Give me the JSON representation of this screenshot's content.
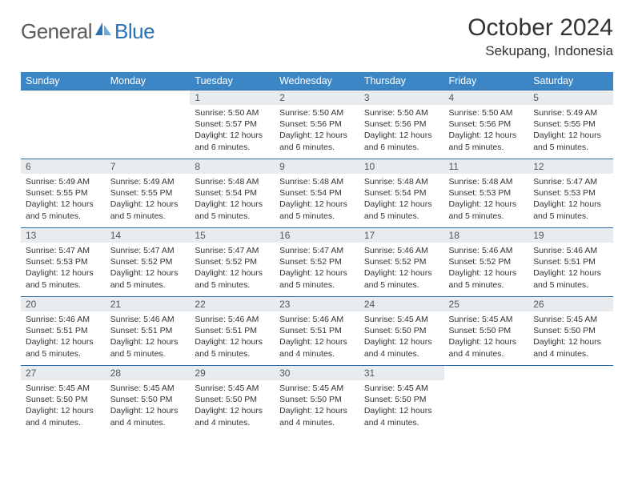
{
  "brand": {
    "general": "General",
    "blue": "Blue"
  },
  "title": "October 2024",
  "location": "Sekupang, Indonesia",
  "style": {
    "header_bg": "#3d86c6",
    "header_fg": "#ffffff",
    "daynum_bg": "#e9ecef",
    "border_color": "#2a6ca8",
    "body_text": "#333333",
    "logo_gray": "#5a5a5a",
    "logo_blue": "#2a72b5",
    "page_bg": "#ffffff",
    "month_fontsize": 30,
    "location_fontsize": 17,
    "header_fontsize": 12.5,
    "body_fontsize": 10.5
  },
  "day_headers": [
    "Sunday",
    "Monday",
    "Tuesday",
    "Wednesday",
    "Thursday",
    "Friday",
    "Saturday"
  ],
  "weeks": [
    [
      null,
      null,
      {
        "n": "1",
        "sr": "5:50 AM",
        "ss": "5:57 PM",
        "dl": "12 hours and 6 minutes."
      },
      {
        "n": "2",
        "sr": "5:50 AM",
        "ss": "5:56 PM",
        "dl": "12 hours and 6 minutes."
      },
      {
        "n": "3",
        "sr": "5:50 AM",
        "ss": "5:56 PM",
        "dl": "12 hours and 6 minutes."
      },
      {
        "n": "4",
        "sr": "5:50 AM",
        "ss": "5:56 PM",
        "dl": "12 hours and 5 minutes."
      },
      {
        "n": "5",
        "sr": "5:49 AM",
        "ss": "5:55 PM",
        "dl": "12 hours and 5 minutes."
      }
    ],
    [
      {
        "n": "6",
        "sr": "5:49 AM",
        "ss": "5:55 PM",
        "dl": "12 hours and 5 minutes."
      },
      {
        "n": "7",
        "sr": "5:49 AM",
        "ss": "5:55 PM",
        "dl": "12 hours and 5 minutes."
      },
      {
        "n": "8",
        "sr": "5:48 AM",
        "ss": "5:54 PM",
        "dl": "12 hours and 5 minutes."
      },
      {
        "n": "9",
        "sr": "5:48 AM",
        "ss": "5:54 PM",
        "dl": "12 hours and 5 minutes."
      },
      {
        "n": "10",
        "sr": "5:48 AM",
        "ss": "5:54 PM",
        "dl": "12 hours and 5 minutes."
      },
      {
        "n": "11",
        "sr": "5:48 AM",
        "ss": "5:53 PM",
        "dl": "12 hours and 5 minutes."
      },
      {
        "n": "12",
        "sr": "5:47 AM",
        "ss": "5:53 PM",
        "dl": "12 hours and 5 minutes."
      }
    ],
    [
      {
        "n": "13",
        "sr": "5:47 AM",
        "ss": "5:53 PM",
        "dl": "12 hours and 5 minutes."
      },
      {
        "n": "14",
        "sr": "5:47 AM",
        "ss": "5:52 PM",
        "dl": "12 hours and 5 minutes."
      },
      {
        "n": "15",
        "sr": "5:47 AM",
        "ss": "5:52 PM",
        "dl": "12 hours and 5 minutes."
      },
      {
        "n": "16",
        "sr": "5:47 AM",
        "ss": "5:52 PM",
        "dl": "12 hours and 5 minutes."
      },
      {
        "n": "17",
        "sr": "5:46 AM",
        "ss": "5:52 PM",
        "dl": "12 hours and 5 minutes."
      },
      {
        "n": "18",
        "sr": "5:46 AM",
        "ss": "5:52 PM",
        "dl": "12 hours and 5 minutes."
      },
      {
        "n": "19",
        "sr": "5:46 AM",
        "ss": "5:51 PM",
        "dl": "12 hours and 5 minutes."
      }
    ],
    [
      {
        "n": "20",
        "sr": "5:46 AM",
        "ss": "5:51 PM",
        "dl": "12 hours and 5 minutes."
      },
      {
        "n": "21",
        "sr": "5:46 AM",
        "ss": "5:51 PM",
        "dl": "12 hours and 5 minutes."
      },
      {
        "n": "22",
        "sr": "5:46 AM",
        "ss": "5:51 PM",
        "dl": "12 hours and 5 minutes."
      },
      {
        "n": "23",
        "sr": "5:46 AM",
        "ss": "5:51 PM",
        "dl": "12 hours and 4 minutes."
      },
      {
        "n": "24",
        "sr": "5:45 AM",
        "ss": "5:50 PM",
        "dl": "12 hours and 4 minutes."
      },
      {
        "n": "25",
        "sr": "5:45 AM",
        "ss": "5:50 PM",
        "dl": "12 hours and 4 minutes."
      },
      {
        "n": "26",
        "sr": "5:45 AM",
        "ss": "5:50 PM",
        "dl": "12 hours and 4 minutes."
      }
    ],
    [
      {
        "n": "27",
        "sr": "5:45 AM",
        "ss": "5:50 PM",
        "dl": "12 hours and 4 minutes."
      },
      {
        "n": "28",
        "sr": "5:45 AM",
        "ss": "5:50 PM",
        "dl": "12 hours and 4 minutes."
      },
      {
        "n": "29",
        "sr": "5:45 AM",
        "ss": "5:50 PM",
        "dl": "12 hours and 4 minutes."
      },
      {
        "n": "30",
        "sr": "5:45 AM",
        "ss": "5:50 PM",
        "dl": "12 hours and 4 minutes."
      },
      {
        "n": "31",
        "sr": "5:45 AM",
        "ss": "5:50 PM",
        "dl": "12 hours and 4 minutes."
      },
      null,
      null
    ]
  ],
  "labels": {
    "sunrise": "Sunrise: ",
    "sunset": "Sunset: ",
    "daylight": "Daylight: "
  }
}
